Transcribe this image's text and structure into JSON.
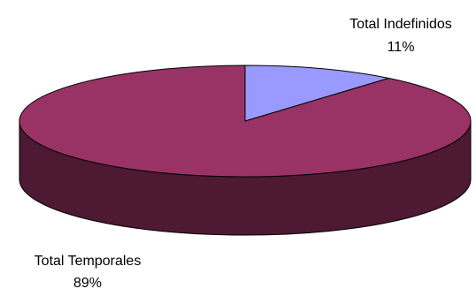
{
  "chart_data": {
    "type": "pie",
    "style": "3d",
    "title": "",
    "slices": [
      {
        "name": "Total Indefinidos",
        "value": 11,
        "value_label": "11%",
        "top_color": "#9999ff",
        "side_color": "#4c4c80"
      },
      {
        "name": "Total Temporales",
        "value": 89,
        "value_label": "89%",
        "top_color": "#993366",
        "side_color": "#4d1933"
      }
    ],
    "legend": "none"
  }
}
